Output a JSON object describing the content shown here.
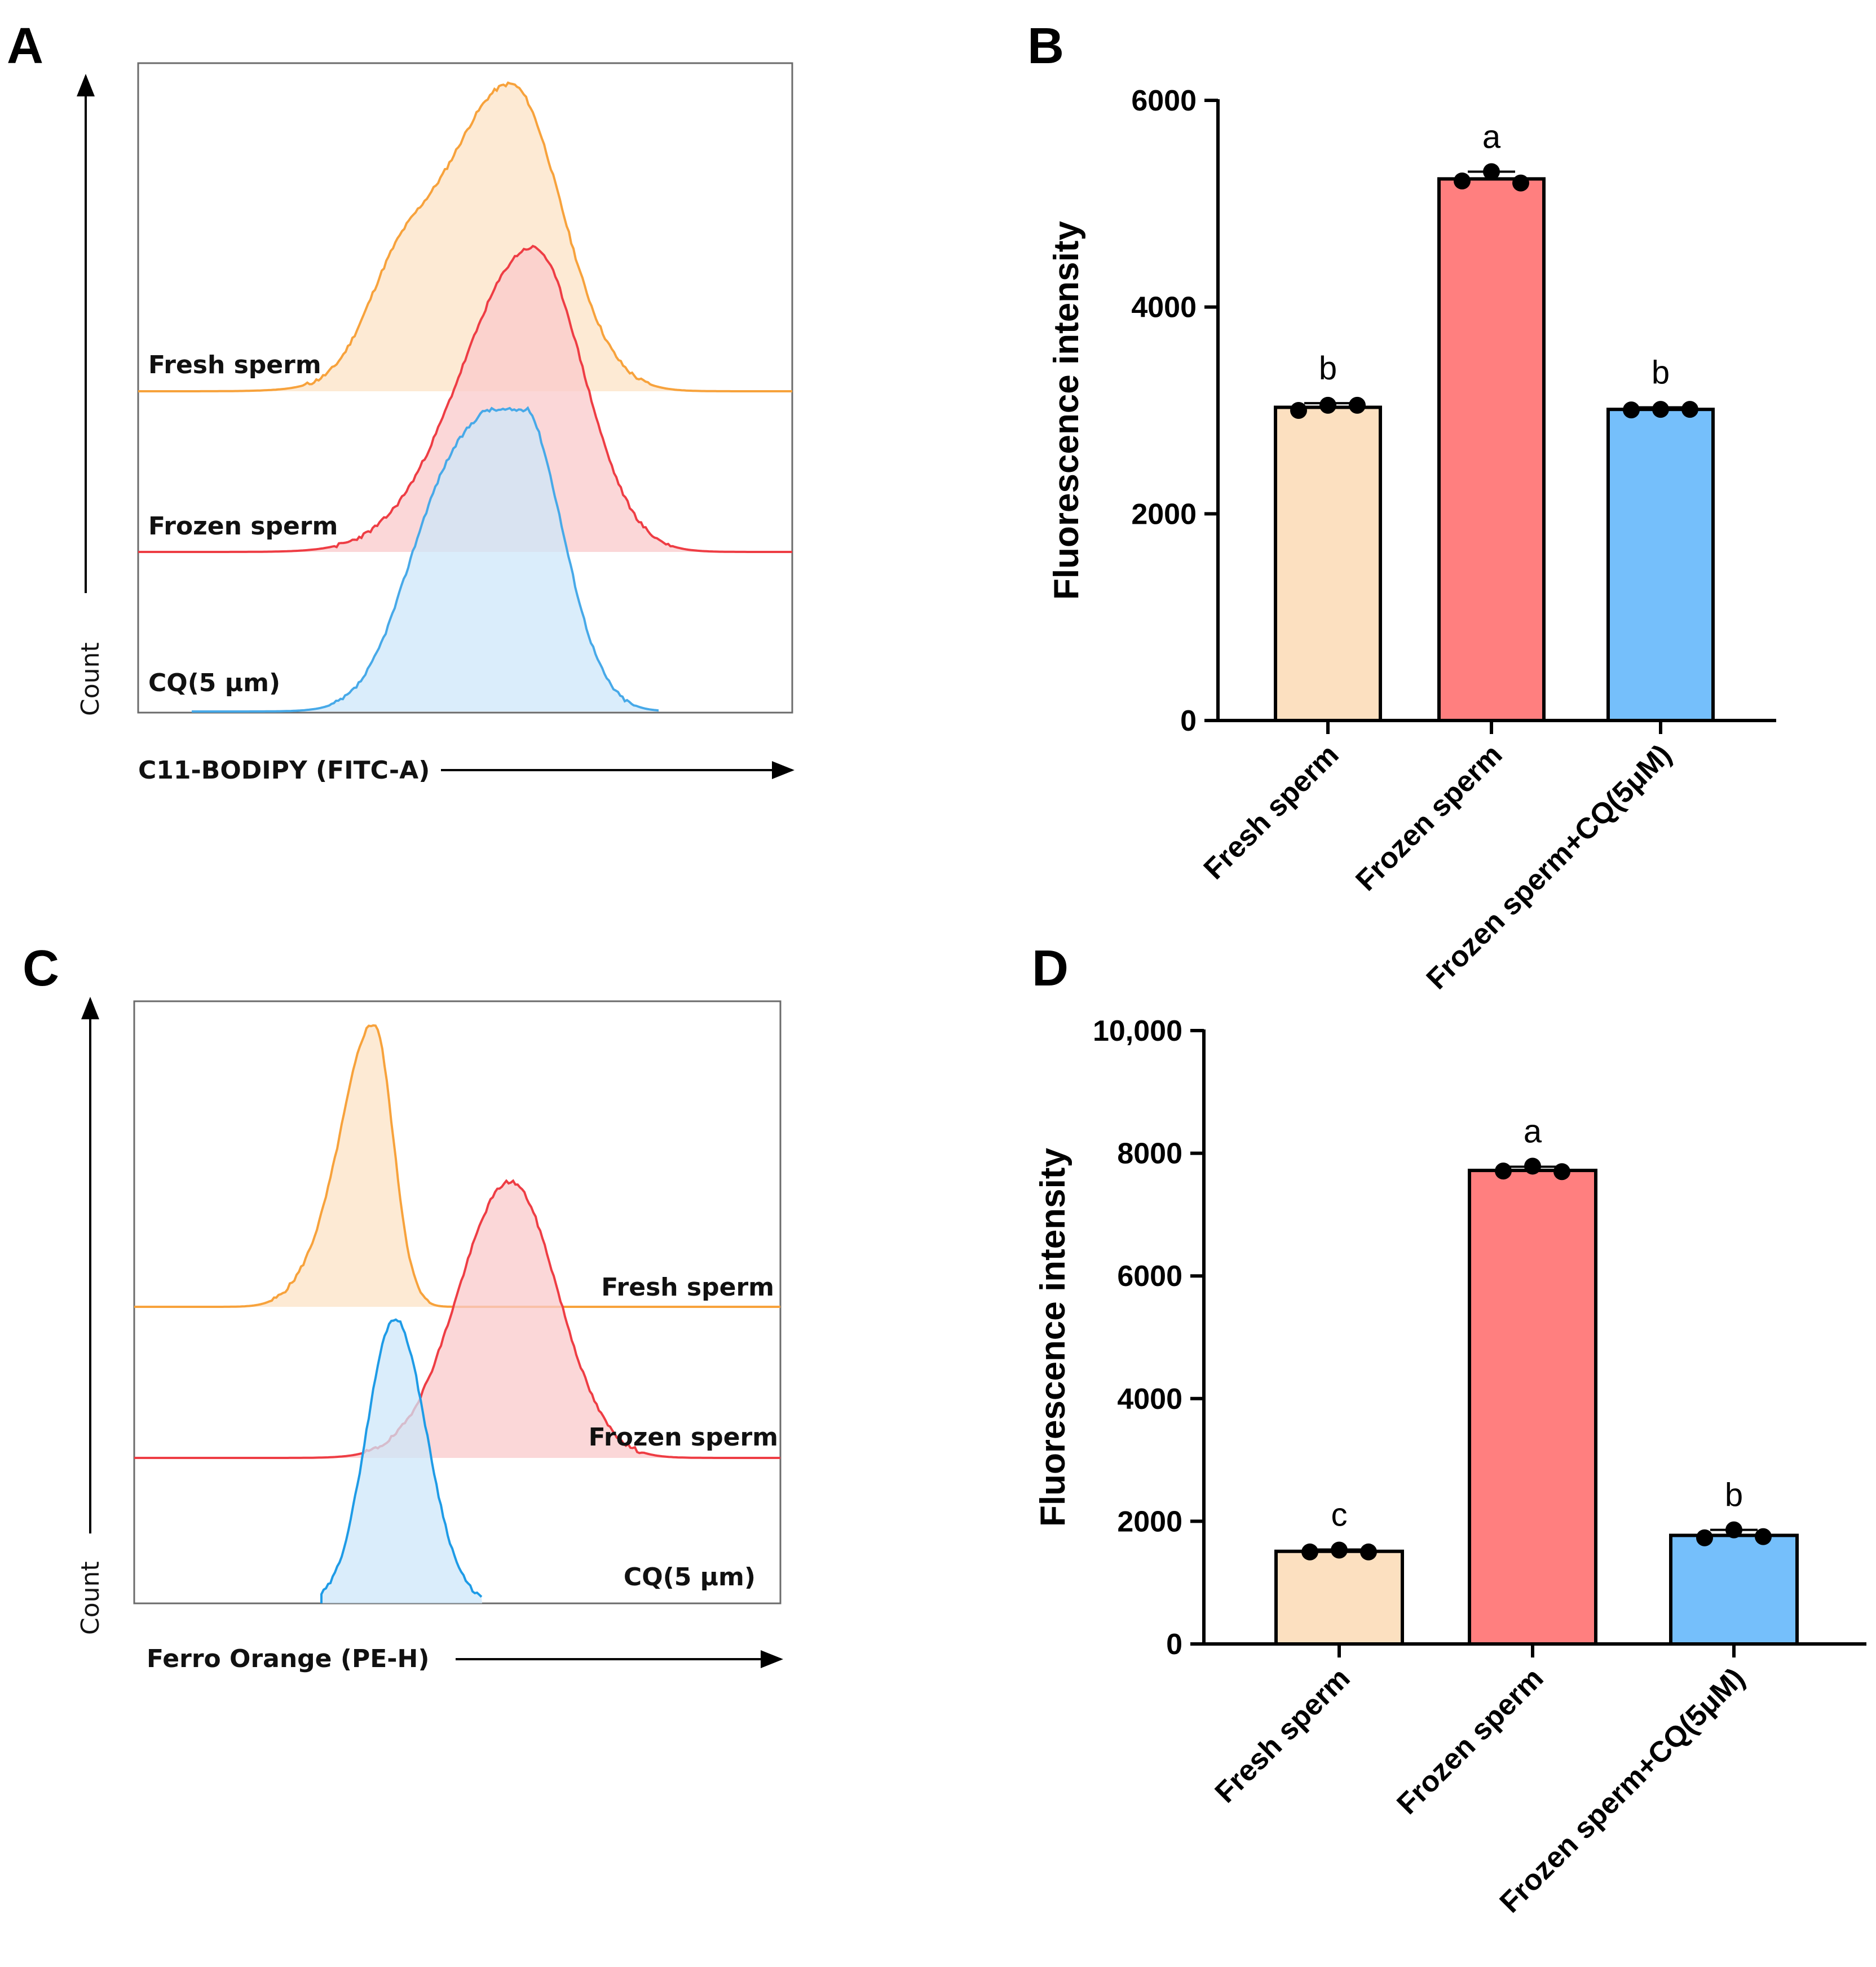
{
  "chart_data": [
    {
      "panel": "A",
      "type": "histogram",
      "xlabel": "C11-BODIPY (FITC-A)",
      "ylabel": "Count",
      "series": [
        {
          "name": "Fresh sperm",
          "label": "Fresh sperm",
          "color": "#F7A23C",
          "fill": "#FCE3C6"
        },
        {
          "name": "Frozen sperm",
          "label": "Frozen sperm",
          "color": "#EE3D44",
          "fill": "#F9C9CB"
        },
        {
          "name": "CQ(5 μm)",
          "label": "CQ(5 μm)",
          "color": "#47A9E8",
          "fill": "#CDE7FA"
        }
      ]
    },
    {
      "panel": "B",
      "type": "bar",
      "ylabel": "Fluorescence intensity",
      "ylim": [
        0,
        6000
      ],
      "yticks": [
        0,
        2000,
        4000,
        6000
      ],
      "ytick_labels": [
        "0",
        "2000",
        "4000",
        "6000"
      ],
      "categories": [
        "Fresh sperm",
        "Frozen sperm",
        "Frozen sperm+CQ(5μM)"
      ],
      "values": [
        3030,
        5240,
        3010
      ],
      "errors": [
        40,
        70,
        20
      ],
      "points": [
        [
          3000,
          3050,
          3050
        ],
        [
          5220,
          5310,
          5200
        ],
        [
          3005,
          3010,
          3010
        ]
      ],
      "significance": [
        "b",
        "a",
        "b"
      ],
      "colors": [
        "#FCE0C0",
        "#FF7F7F",
        "#75BFFB"
      ]
    },
    {
      "panel": "C",
      "type": "histogram",
      "xlabel": "Ferro Orange (PE-H)",
      "ylabel": "Count",
      "series": [
        {
          "name": "Fresh sperm",
          "label": "Fresh sperm",
          "color": "#F7A23C",
          "fill": "#FCE3C6"
        },
        {
          "name": "Frozen sperm",
          "label": "Frozen sperm",
          "color": "#EE3D44",
          "fill": "#F9C9CB"
        },
        {
          "name": "CQ(5 μm)",
          "label": "CQ(5 μm)",
          "color": "#1E9BE6",
          "fill": "#CDE7FA"
        }
      ]
    },
    {
      "panel": "D",
      "type": "bar",
      "ylabel": "Fluorescence intensity",
      "ylim": [
        0,
        10000
      ],
      "yticks": [
        0,
        2000,
        4000,
        6000,
        8000,
        10000
      ],
      "ytick_labels": [
        "0",
        "2000",
        "4000",
        "6000",
        "8000",
        "10,000"
      ],
      "categories": [
        "Fresh sperm",
        "Frozen sperm",
        "Frozen sperm+CQ(5μM)"
      ],
      "values": [
        1510,
        7720,
        1770
      ],
      "errors": [
        30,
        60,
        90
      ],
      "points": [
        [
          1500,
          1530,
          1500
        ],
        [
          7710,
          7790,
          7700
        ],
        [
          1730,
          1860,
          1750
        ]
      ],
      "significance": [
        "c",
        "a",
        "b"
      ],
      "colors": [
        "#FCE0C0",
        "#FF7F7F",
        "#75BFFB"
      ]
    }
  ]
}
